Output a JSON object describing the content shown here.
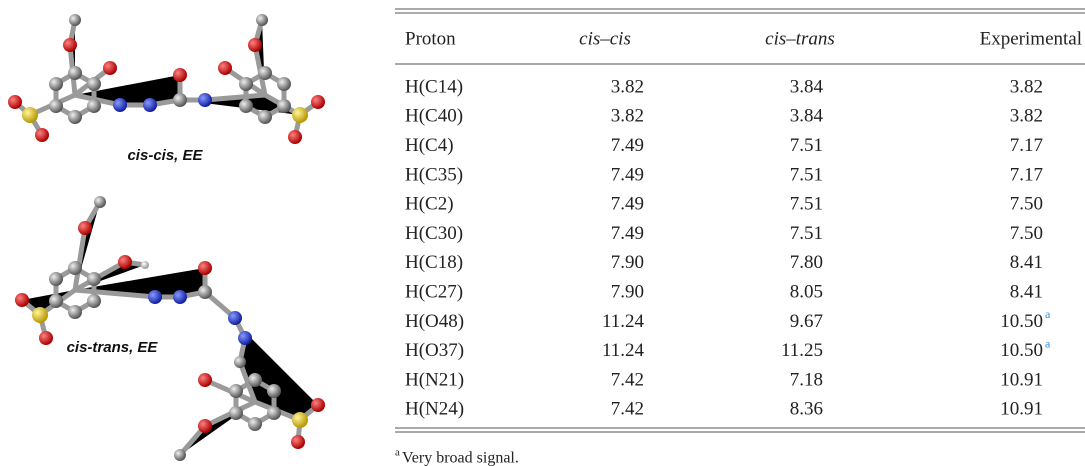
{
  "figure": {
    "labels": [
      "cis-cis, EE",
      "cis-trans, EE"
    ]
  },
  "table": {
    "header": [
      "Proton",
      "cis–cis",
      "cis–trans",
      "Experimental"
    ],
    "rows": [
      {
        "cells": [
          "H(C14)",
          "3.82",
          "3.84",
          "3.82"
        ]
      },
      {
        "cells": [
          "H(C40)",
          "3.82",
          "3.84",
          "3.82"
        ]
      },
      {
        "cells": [
          "H(C4)",
          "7.49",
          "7.51",
          "7.17"
        ]
      },
      {
        "cells": [
          "H(C35)",
          "7.49",
          "7.51",
          "7.17"
        ]
      },
      {
        "cells": [
          "H(C2)",
          "7.49",
          "7.51",
          "7.50"
        ]
      },
      {
        "cells": [
          "H(C30)",
          "7.49",
          "7.51",
          "7.50"
        ]
      },
      {
        "cells": [
          "H(C18)",
          "7.90",
          "7.80",
          "8.41"
        ]
      },
      {
        "cells": [
          "H(C27)",
          "7.90",
          "8.05",
          "8.41"
        ]
      },
      {
        "cells": [
          "H(O48)",
          "11.24",
          "9.67",
          "10.50"
        ],
        "note": "a"
      },
      {
        "cells": [
          "H(O37)",
          "11.24",
          "11.25",
          "10.50"
        ],
        "note": "a"
      },
      {
        "cells": [
          "H(N21)",
          "7.42",
          "7.18",
          "10.91"
        ]
      },
      {
        "cells": [
          "H(N24)",
          "7.42",
          "8.36",
          "10.91"
        ]
      }
    ],
    "footnote": {
      "marker": "a",
      "text": "Very broad signal."
    }
  }
}
